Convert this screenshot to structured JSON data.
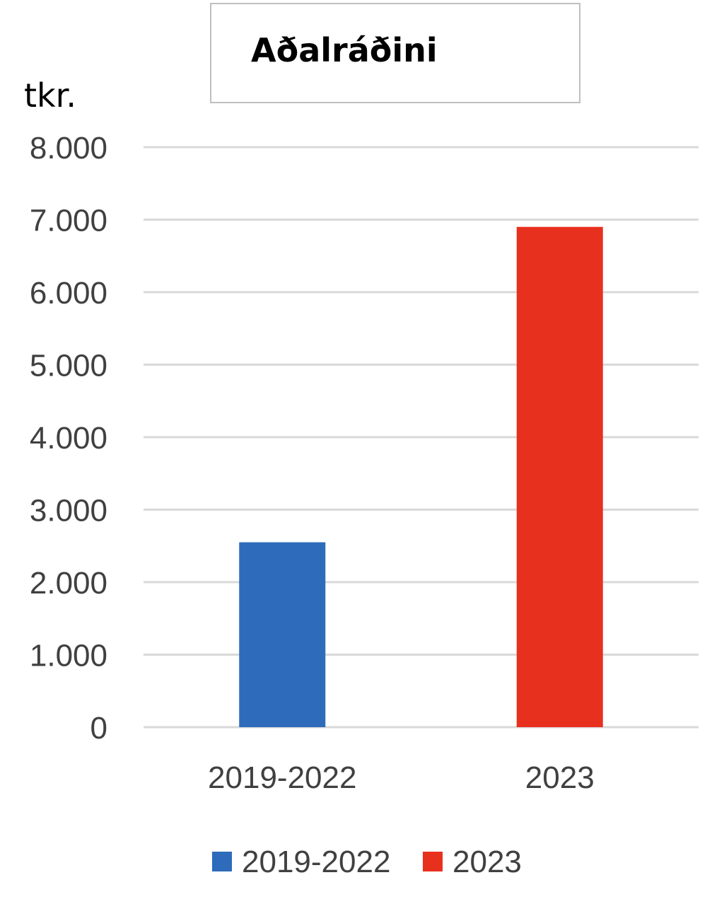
{
  "chart_data": {
    "type": "bar",
    "title": "Aðalráðini",
    "ylabel": "tkr.",
    "xlabel": "",
    "ylim": [
      0,
      8000
    ],
    "yticks": [
      0,
      1000,
      2000,
      3000,
      4000,
      5000,
      6000,
      7000,
      8000
    ],
    "ytick_labels": [
      "0",
      "1.000",
      "2.000",
      "3.000",
      "4.000",
      "5.000",
      "6.000",
      "7.000",
      "8.000"
    ],
    "categories": [
      "2019-2022",
      "2023"
    ],
    "series": [
      {
        "name": "2019-2022",
        "color": "#2e6bbb",
        "values": [
          2550,
          null
        ]
      },
      {
        "name": "2023",
        "color": "#e8301f",
        "values": [
          null,
          6900
        ]
      }
    ],
    "grid": true,
    "legend": "bottom",
    "colors": {
      "grid": "#d9d9d9",
      "tick_text": "#404040"
    }
  }
}
